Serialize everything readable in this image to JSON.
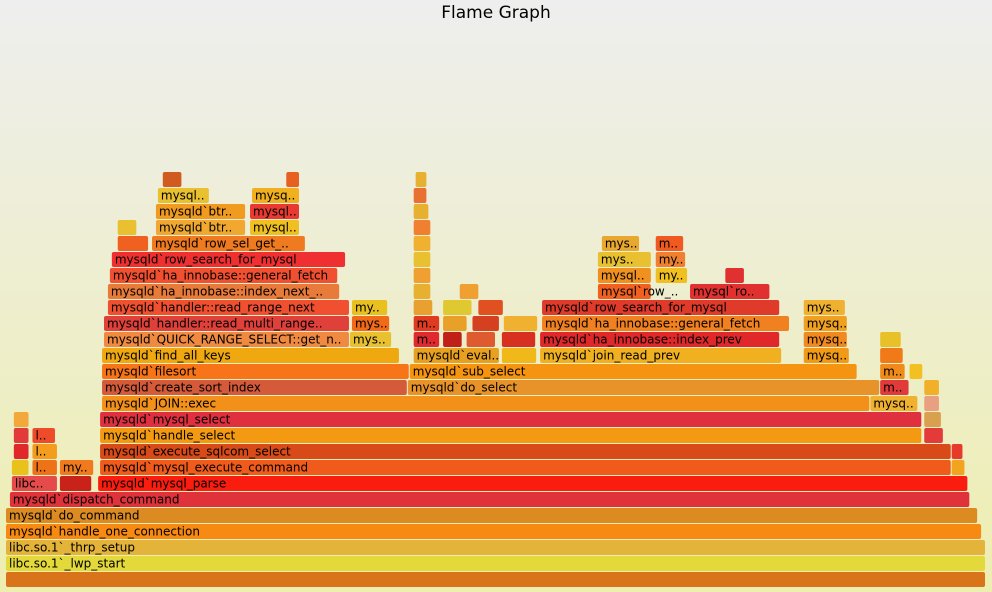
{
  "chart_data": {
    "type": "flame",
    "title": "Flame Graph",
    "frames": [
      {
        "name": null,
        "depth": 0,
        "start": 0,
        "width": 100,
        "color": "#d9741a"
      },
      {
        "name": "libc.so.1`_lwp_start",
        "depth": 1,
        "start": 0,
        "width": 100,
        "color": "#e3d93a"
      },
      {
        "name": "libc.so.1`_thrp_setup",
        "depth": 2,
        "start": 0,
        "width": 100,
        "color": "#e4b43a"
      },
      {
        "name": "mysqld`handle_one_connection",
        "depth": 3,
        "start": 0,
        "width": 99.6,
        "color": "#f78a12"
      },
      {
        "name": "mysqld`do_command",
        "depth": 4,
        "start": 0,
        "width": 99.2,
        "color": "#dc8a22"
      },
      {
        "name": "mysqld`dispatch_command",
        "depth": 5,
        "start": 0.4,
        "width": 98.0,
        "color": "#e0323a"
      },
      {
        "name": "libc..",
        "depth": 6,
        "start": 0.6,
        "width": 4.7,
        "color": "#e54b4b"
      },
      {
        "name": null,
        "depth": 6,
        "start": 5.5,
        "width": 3.3,
        "color": "#c9221a"
      },
      {
        "name": "mysqld`mysql_parse",
        "depth": 6,
        "start": 9.4,
        "width": 88.8,
        "color": "#fb1c10"
      },
      {
        "name": null,
        "depth": 7,
        "start": 0.6,
        "width": 1.8,
        "color": "#e8c21a"
      },
      {
        "name": "l..",
        "depth": 7,
        "start": 2.7,
        "width": 2.6,
        "color": "#ee7218"
      },
      {
        "name": "my..",
        "depth": 7,
        "start": 5.5,
        "width": 3.5,
        "color": "#f07a1d"
      },
      {
        "name": "mysqld`mysql_execute_command",
        "depth": 7,
        "start": 9.6,
        "width": 86.9,
        "color": "#f05a1a"
      },
      {
        "name": null,
        "depth": 7,
        "start": 96.5,
        "width": 1.4,
        "color": "#f2a41e"
      },
      {
        "name": null,
        "depth": 8,
        "start": 0.8,
        "width": 1.6,
        "color": "#e0282a"
      },
      {
        "name": "l..",
        "depth": 8,
        "start": 2.7,
        "width": 2.6,
        "color": "#f39c1e"
      },
      {
        "name": "mysqld`execute_sqlcom_select",
        "depth": 8,
        "start": 9.6,
        "width": 86.9,
        "color": "#d84a18"
      },
      {
        "name": null,
        "depth": 8,
        "start": 96.5,
        "width": 1.2,
        "color": "#e83a2a"
      },
      {
        "name": null,
        "depth": 9,
        "start": 0.8,
        "width": 1.6,
        "color": "#e23a3a"
      },
      {
        "name": "l..",
        "depth": 9,
        "start": 2.7,
        "width": 2.4,
        "color": "#ee4b2b"
      },
      {
        "name": "mysqld`handle_select",
        "depth": 9,
        "start": 9.6,
        "width": 83.9,
        "color": "#f39a12"
      },
      {
        "name": null,
        "depth": 9,
        "start": 93.7,
        "width": 2.0,
        "color": "#e33a3a"
      },
      {
        "name": null,
        "depth": 10,
        "start": 0.8,
        "width": 1.6,
        "color": "#f2a83a"
      },
      {
        "name": "mysqld`mysql_select",
        "depth": 10,
        "start": 9.6,
        "width": 83.9,
        "color": "#e03040"
      },
      {
        "name": null,
        "depth": 10,
        "start": 93.7,
        "width": 1.8,
        "color": "#d9a050"
      },
      {
        "name": "mysqld`JOIN::exec",
        "depth": 11,
        "start": 9.8,
        "width": 78.4,
        "color": "#f2901a"
      },
      {
        "name": "mysq..",
        "depth": 11,
        "start": 88.2,
        "width": 4.9,
        "color": "#f0b030"
      },
      {
        "name": null,
        "depth": 11,
        "start": 93.7,
        "width": 1.6,
        "color": "#e9a080"
      },
      {
        "name": "mysqld`create_sort_index",
        "depth": 12,
        "start": 9.8,
        "width": 31.2,
        "color": "#d45a3a"
      },
      {
        "name": "mysqld`do_select",
        "depth": 12,
        "start": 41.0,
        "width": 48.2,
        "color": "#e8922a"
      },
      {
        "name": "m..",
        "depth": 12,
        "start": 89.2,
        "width": 3.0,
        "color": "#e03a3a"
      },
      {
        "name": null,
        "depth": 12,
        "start": 93.7,
        "width": 1.6,
        "color": "#f2b02a"
      },
      {
        "name": "mysqld`filesort",
        "depth": 13,
        "start": 9.8,
        "width": 31.4,
        "color": "#f87418"
      },
      {
        "name": "mysqld`sub_select",
        "depth": 13,
        "start": 41.2,
        "width": 45.7,
        "color": "#f49410"
      },
      {
        "name": "m..",
        "depth": 13,
        "start": 89.2,
        "width": 2.6,
        "color": "#f08a18"
      },
      {
        "name": null,
        "depth": 13,
        "start": 92.2,
        "width": 1.4,
        "color": "#f2c020"
      },
      {
        "name": "mysqld`find_all_keys",
        "depth": 14,
        "start": 9.8,
        "width": 30.4,
        "color": "#f0a810"
      },
      {
        "name": "mysqld`eval..",
        "depth": 14,
        "start": 41.6,
        "width": 8.8,
        "color": "#e8a020"
      },
      {
        "name": null,
        "depth": 14,
        "start": 50.6,
        "width": 3.6,
        "color": "#f0b818"
      },
      {
        "name": "mysqld`join_read_prev",
        "depth": 14,
        "start": 54.5,
        "width": 24.7,
        "color": "#f0b020"
      },
      {
        "name": "mysq..",
        "depth": 14,
        "start": 81.4,
        "width": 4.7,
        "color": "#f09a18"
      },
      {
        "name": null,
        "depth": 14,
        "start": 89.2,
        "width": 2.4,
        "color": "#f07a18"
      },
      {
        "name": "mysqld`QUICK_RANGE_SELECT::get_n..",
        "depth": 15,
        "start": 10.0,
        "width": 25.1,
        "color": "#f08a40"
      },
      {
        "name": "mys..",
        "depth": 15,
        "start": 35.1,
        "width": 4.3,
        "color": "#e8c030"
      },
      {
        "name": "m..",
        "depth": 15,
        "start": 41.6,
        "width": 2.7,
        "color": "#e02a30"
      },
      {
        "name": null,
        "depth": 15,
        "start": 44.6,
        "width": 2.0,
        "color": "#c02018"
      },
      {
        "name": null,
        "depth": 15,
        "start": 47.0,
        "width": 3.0,
        "color": "#e05a30"
      },
      {
        "name": null,
        "depth": 15,
        "start": 50.6,
        "width": 3.5,
        "color": "#d83020"
      },
      {
        "name": "mysqld`ha_innobase::index_prev",
        "depth": 15,
        "start": 54.5,
        "width": 24.5,
        "color": "#e0282a"
      },
      {
        "name": "mysq..",
        "depth": 15,
        "start": 81.4,
        "width": 4.5,
        "color": "#f08a20"
      },
      {
        "name": null,
        "depth": 15,
        "start": 89.2,
        "width": 2.2,
        "color": "#e8c028"
      },
      {
        "name": "mysqld`handler::read_multi_range..",
        "depth": 16,
        "start": 10.0,
        "width": 25.1,
        "color": "#e0403a"
      },
      {
        "name": "mys..",
        "depth": 16,
        "start": 35.3,
        "width": 3.9,
        "color": "#f06a18"
      },
      {
        "name": "m..",
        "depth": 16,
        "start": 41.6,
        "width": 2.7,
        "color": "#e03a20"
      },
      {
        "name": null,
        "depth": 16,
        "start": 44.6,
        "width": 2.5,
        "color": "#e8a028"
      },
      {
        "name": null,
        "depth": 16,
        "start": 47.6,
        "width": 2.8,
        "color": "#d44020"
      },
      {
        "name": null,
        "depth": 16,
        "start": 50.8,
        "width": 3.5,
        "color": "#f0b030"
      },
      {
        "name": "mysqld`ha_innobase::general_fetch",
        "depth": 16,
        "start": 54.7,
        "width": 25.3,
        "color": "#f08020"
      },
      {
        "name": "mysq..",
        "depth": 16,
        "start": 81.4,
        "width": 4.5,
        "color": "#f0a020"
      },
      {
        "name": "mysqld`handler::read_range_next",
        "depth": 17,
        "start": 10.4,
        "width": 24.7,
        "color": "#f05030"
      },
      {
        "name": "my..",
        "depth": 17,
        "start": 35.3,
        "width": 3.7,
        "color": "#e8c020"
      },
      {
        "name": null,
        "depth": 17,
        "start": 41.6,
        "width": 2.0,
        "color": "#e8a030"
      },
      {
        "name": null,
        "depth": 17,
        "start": 44.6,
        "width": 3.0,
        "color": "#e0c830"
      },
      {
        "name": null,
        "depth": 17,
        "start": 48.2,
        "width": 2.6,
        "color": "#e05020"
      },
      {
        "name": "mysqld`row_search_for_mysql",
        "depth": 17,
        "start": 54.7,
        "width": 24.3,
        "color": "#e03a2a"
      },
      {
        "name": "mys..",
        "depth": 17,
        "start": 81.4,
        "width": 4.3,
        "color": "#f0b030"
      },
      {
        "name": "mysqld`ha_innobase::index_next_..",
        "depth": 18,
        "start": 10.4,
        "width": 23.7,
        "color": "#e87a3a"
      },
      {
        "name": null,
        "depth": 18,
        "start": 41.6,
        "width": 1.8,
        "color": "#e8b030"
      },
      {
        "name": null,
        "depth": 18,
        "start": 46.3,
        "width": 2.0,
        "color": "#f0a030"
      },
      {
        "name": "mysql`row_..",
        "depth": 18,
        "start": 60.4,
        "width": 5.5,
        "color": "#f06020"
      },
      {
        "name": "mysql`ro..",
        "depth": 18,
        "start": 69.8,
        "width": 8.2,
        "color": "#e03030"
      },
      {
        "name": "mysqld`ha_innobase::general_fetch",
        "depth": 19,
        "start": 10.6,
        "width": 23.3,
        "color": "#f05030"
      },
      {
        "name": null,
        "depth": 19,
        "start": 41.6,
        "width": 1.8,
        "color": "#f0a030"
      },
      {
        "name": "mysql..",
        "depth": 19,
        "start": 60.4,
        "width": 5.5,
        "color": "#f09020"
      },
      {
        "name": "my..",
        "depth": 19,
        "start": 66.3,
        "width": 3.3,
        "color": "#f0c020"
      },
      {
        "name": null,
        "depth": 19,
        "start": 73.4,
        "width": 2.0,
        "color": "#e03030"
      },
      {
        "name": "mysqld`row_search_for_mysql",
        "depth": 20,
        "start": 10.8,
        "width": 23.9,
        "color": "#f03030"
      },
      {
        "name": null,
        "depth": 20,
        "start": 41.6,
        "width": 1.8,
        "color": "#e8c030"
      },
      {
        "name": "mys..",
        "depth": 20,
        "start": 60.4,
        "width": 5.5,
        "color": "#e8c030"
      },
      {
        "name": "my..",
        "depth": 20,
        "start": 66.3,
        "width": 3.1,
        "color": "#f08030"
      },
      {
        "name": null,
        "depth": 21,
        "start": 11.4,
        "width": 3.2,
        "color": "#f06020"
      },
      {
        "name": "mysqld`row_sel_get_..",
        "depth": 21,
        "start": 14.9,
        "width": 15.7,
        "color": "#f07a20"
      },
      {
        "name": null,
        "depth": 21,
        "start": 41.6,
        "width": 1.8,
        "color": "#f0b030"
      },
      {
        "name": "mys..",
        "depth": 21,
        "start": 60.8,
        "width": 3.9,
        "color": "#e8a830"
      },
      {
        "name": "m..",
        "depth": 21,
        "start": 66.3,
        "width": 2.9,
        "color": "#f05a20"
      },
      {
        "name": null,
        "depth": 22,
        "start": 11.4,
        "width": 2.0,
        "color": "#e8c030"
      },
      {
        "name": "mysqld`btr..",
        "depth": 22,
        "start": 15.3,
        "width": 9.2,
        "color": "#f0a830"
      },
      {
        "name": "mysql..",
        "depth": 22,
        "start": 24.9,
        "width": 5.1,
        "color": "#f0c020"
      },
      {
        "name": null,
        "depth": 22,
        "start": 41.6,
        "width": 1.8,
        "color": "#f08030"
      },
      {
        "name": "mysqld`btr..",
        "depth": 23,
        "start": 15.3,
        "width": 9.2,
        "color": "#f09a20"
      },
      {
        "name": "mysql..",
        "depth": 23,
        "start": 24.9,
        "width": 5.1,
        "color": "#e83a30"
      },
      {
        "name": null,
        "depth": 23,
        "start": 41.6,
        "width": 1.6,
        "color": "#e8b030"
      },
      {
        "name": "mysql..",
        "depth": 24,
        "start": 15.5,
        "width": 5.3,
        "color": "#e8c030"
      },
      {
        "name": "mysq..",
        "depth": 24,
        "start": 25.1,
        "width": 4.9,
        "color": "#f0b020"
      },
      {
        "name": null,
        "depth": 24,
        "start": 41.6,
        "width": 1.4,
        "color": "#e87030"
      },
      {
        "name": null,
        "depth": 25,
        "start": 16.0,
        "width": 2.0,
        "color": "#d05a20"
      },
      {
        "name": null,
        "depth": 25,
        "start": 28.6,
        "width": 1.4,
        "color": "#e86020"
      },
      {
        "name": null,
        "depth": 25,
        "start": 41.8,
        "width": 1.2,
        "color": "#e8b030"
      }
    ]
  }
}
